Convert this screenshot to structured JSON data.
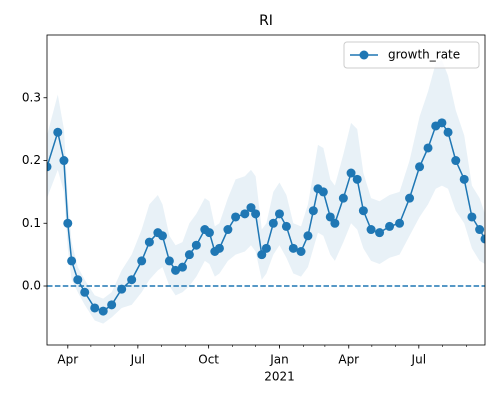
{
  "chart_data": {
    "type": "line",
    "title": "RI",
    "x": [
      "2020-03-05",
      "2020-03-19",
      "2020-03-27",
      "2020-04-01",
      "2020-04-06",
      "2020-04-14",
      "2020-04-23",
      "2020-05-06",
      "2020-05-17",
      "2020-05-28",
      "2020-06-10",
      "2020-06-23",
      "2020-07-06",
      "2020-07-16",
      "2020-07-27",
      "2020-08-02",
      "2020-08-11",
      "2020-08-19",
      "2020-08-28",
      "2020-09-06",
      "2020-09-15",
      "2020-09-26",
      "2020-10-02",
      "2020-10-09",
      "2020-10-15",
      "2020-10-26",
      "2020-11-05",
      "2020-11-17",
      "2020-11-25",
      "2020-12-01",
      "2020-12-09",
      "2020-12-15",
      "2020-12-24",
      "2021-01-01",
      "2021-01-10",
      "2021-01-19",
      "2021-01-29",
      "2021-02-07",
      "2021-02-14",
      "2021-02-20",
      "2021-02-27",
      "2021-03-08",
      "2021-03-14",
      "2021-03-25",
      "2021-04-04",
      "2021-04-12",
      "2021-04-20",
      "2021-04-30",
      "2021-05-11",
      "2021-05-24",
      "2021-06-06",
      "2021-06-19",
      "2021-07-02",
      "2021-07-13",
      "2021-07-23",
      "2021-07-31",
      "2021-08-08",
      "2021-08-18",
      "2021-08-29",
      "2021-09-08",
      "2021-09-18",
      "2021-09-25"
    ],
    "series": [
      {
        "name": "growth_rate",
        "color": "#1f77b4",
        "values": [
          0.19,
          0.245,
          0.2,
          0.1,
          0.04,
          0.01,
          -0.01,
          -0.035,
          -0.04,
          -0.03,
          -0.005,
          0.01,
          0.04,
          0.07,
          0.085,
          0.08,
          0.04,
          0.025,
          0.03,
          0.05,
          0.065,
          0.09,
          0.085,
          0.055,
          0.06,
          0.09,
          0.11,
          0.115,
          0.125,
          0.115,
          0.05,
          0.06,
          0.1,
          0.115,
          0.095,
          0.06,
          0.055,
          0.08,
          0.12,
          0.155,
          0.15,
          0.11,
          0.1,
          0.14,
          0.18,
          0.17,
          0.12,
          0.09,
          0.085,
          0.095,
          0.1,
          0.14,
          0.19,
          0.22,
          0.255,
          0.26,
          0.245,
          0.2,
          0.17,
          0.11,
          0.09,
          0.075
        ],
        "lower": [
          0.14,
          0.185,
          0.15,
          0.06,
          0.01,
          -0.01,
          -0.03,
          -0.055,
          -0.06,
          -0.05,
          -0.035,
          -0.03,
          -0.01,
          0.01,
          0.025,
          0.03,
          0.0,
          -0.015,
          -0.01,
          0.0,
          0.015,
          0.04,
          0.035,
          0.015,
          0.02,
          0.04,
          0.05,
          0.055,
          0.065,
          0.055,
          0.01,
          0.02,
          0.05,
          0.065,
          0.045,
          0.02,
          0.015,
          0.03,
          0.06,
          0.085,
          0.08,
          0.05,
          0.04,
          0.07,
          0.1,
          0.09,
          0.06,
          0.04,
          0.035,
          0.045,
          0.05,
          0.08,
          0.11,
          0.13,
          0.155,
          0.16,
          0.155,
          0.12,
          0.1,
          0.06,
          0.04,
          0.035
        ],
        "upper": [
          0.24,
          0.305,
          0.25,
          0.14,
          0.07,
          0.03,
          0.01,
          -0.015,
          -0.02,
          -0.01,
          0.025,
          0.05,
          0.09,
          0.13,
          0.145,
          0.13,
          0.08,
          0.065,
          0.07,
          0.1,
          0.115,
          0.14,
          0.135,
          0.095,
          0.1,
          0.14,
          0.17,
          0.175,
          0.185,
          0.175,
          0.09,
          0.1,
          0.15,
          0.165,
          0.145,
          0.1,
          0.095,
          0.13,
          0.18,
          0.225,
          0.22,
          0.17,
          0.16,
          0.21,
          0.26,
          0.25,
          0.18,
          0.14,
          0.135,
          0.145,
          0.15,
          0.2,
          0.27,
          0.31,
          0.355,
          0.36,
          0.335,
          0.28,
          0.24,
          0.16,
          0.14,
          0.115
        ]
      }
    ],
    "xlim": [
      "2020-03-05",
      "2021-09-25"
    ],
    "xticks": [
      {
        "value": "2020-04-01",
        "label": "Apr"
      },
      {
        "value": "2020-07-01",
        "label": "Jul"
      },
      {
        "value": "2020-10-01",
        "label": "Oct"
      },
      {
        "value": "2021-01-01",
        "label": "Jan"
      },
      {
        "value": "2021-04-01",
        "label": "Apr"
      },
      {
        "value": "2021-07-01",
        "label": "Jul"
      }
    ],
    "x_year_labels": [
      {
        "value": "2021-01-01",
        "label": "2021"
      }
    ],
    "ylim": [
      -0.094,
      0.4
    ],
    "yticks": [
      {
        "value": 0,
        "label": "0.0"
      },
      0.1,
      0.2,
      0.3
    ],
    "reference_line": 0,
    "legend": "upper right"
  }
}
